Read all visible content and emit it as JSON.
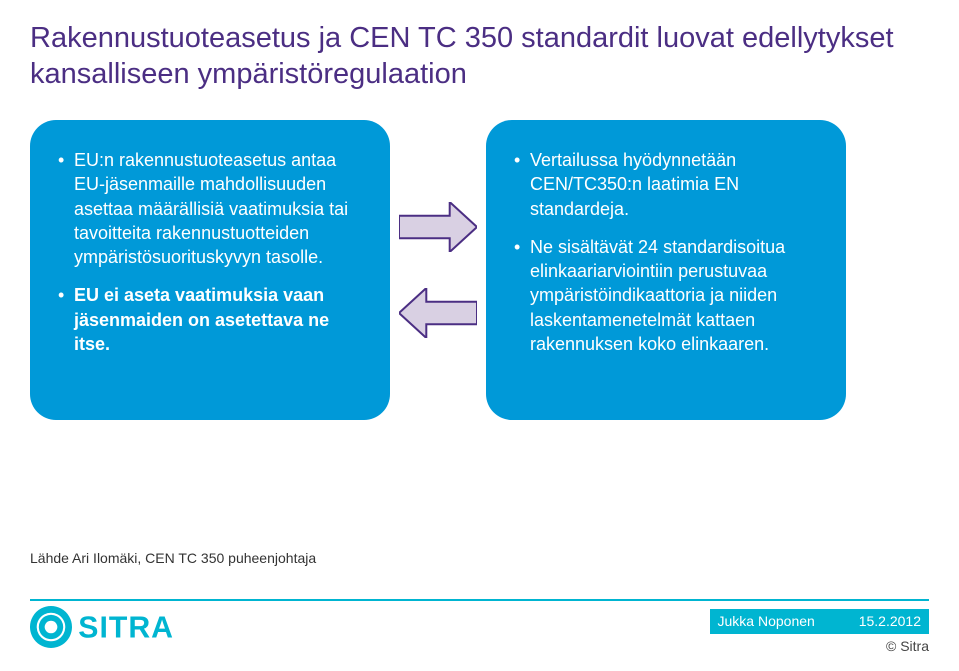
{
  "title": "Rakennustuoteasetus ja CEN TC 350 standardit luovat edellytykset kansalliseen ympäristöregulaation",
  "left_box": {
    "bg_color": "#0099d8",
    "text_color": "#ffffff",
    "font_size": 18,
    "bullets": [
      "EU:n rakennustuoteasetus antaa EU-jäsenmaille mahdollisuuden asettaa määrällisiä vaatimuksia tai tavoitteita rakennustuotteiden ympäristösuorituskyvyn tasolle.",
      "EU ei aseta vaatimuksia vaan jäsenmaiden on asetettava ne itse."
    ],
    "bold_bullet_index": 1,
    "border_radius": 26
  },
  "right_box": {
    "bg_color": "#0099d8",
    "text_color": "#ffffff",
    "font_size": 18,
    "bullets": [
      "Vertailussa hyödynnetään CEN/TC350:n laatimia EN standardeja.",
      "Ne sisältävät 24 standardisoitua elinkaariarviointiin perustuvaa ympäristöindikaattoria ja niiden laskentamenetelmät kattaen rakennuksen koko elinkaaren."
    ],
    "border_radius": 26
  },
  "arrows": {
    "fill_color": "#d9d0e3",
    "stroke_color": "#4b2e83",
    "top_direction": "right",
    "bottom_direction": "left",
    "width": 78,
    "height": 50
  },
  "source_text": "Lähde Ari Ilomäki, CEN TC 350 puheenjohtaja",
  "footer": {
    "line_color": "#00b5d1",
    "author": "Jukka Noponen",
    "date": "15.2.2012",
    "copyright": "© Sitra",
    "author_bg": "#00b5d1",
    "author_color": "#ffffff"
  },
  "logo": {
    "fill_color": "#00b5d1",
    "text": "SITRA",
    "width": 150,
    "height": 42
  },
  "title_style": {
    "color": "#4b2e83",
    "font_size": 29
  }
}
